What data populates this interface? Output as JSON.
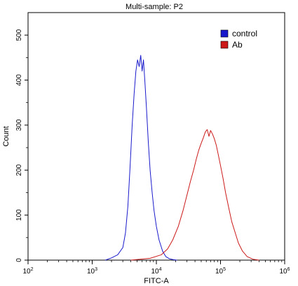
{
  "chart_data": {
    "type": "line",
    "title": "Multi-sample: P2",
    "xlabel": "FITC-A",
    "ylabel": "Count",
    "x_scale": "log",
    "xlim": [
      100,
      1000000
    ],
    "ylim": [
      0,
      550
    ],
    "grid": false,
    "legend_position": "top-right",
    "x_ticks": [
      {
        "value": 100,
        "base": "10",
        "exp": "2"
      },
      {
        "value": 1000,
        "base": "10",
        "exp": "3"
      },
      {
        "value": 10000,
        "base": "10",
        "exp": "4"
      },
      {
        "value": 100000,
        "base": "10",
        "exp": "5"
      },
      {
        "value": 1000000,
        "base": "10",
        "exp": "6"
      }
    ],
    "y_ticks": [
      0,
      100,
      200,
      300,
      400,
      500
    ],
    "series": [
      {
        "name": "control",
        "color": "#1a1acd",
        "x": [
          1600,
          2000,
          2500,
          3000,
          3300,
          3600,
          3900,
          4200,
          4500,
          4800,
          5100,
          5400,
          5700,
          6000,
          6300,
          6600,
          7000,
          7500,
          8000,
          8600,
          9200,
          10000,
          11000,
          12500,
          14000,
          16000,
          18500,
          21000
        ],
        "values": [
          0,
          5,
          12,
          28,
          60,
          120,
          210,
          300,
          370,
          420,
          445,
          430,
          455,
          420,
          445,
          400,
          340,
          260,
          200,
          150,
          110,
          75,
          45,
          20,
          8,
          3,
          1,
          0
        ]
      },
      {
        "name": "Ab",
        "color": "#cc1a1a",
        "x": [
          4000,
          8000,
          12000,
          15000,
          18000,
          22000,
          26000,
          30000,
          34000,
          38000,
          42000,
          46000,
          50000,
          54000,
          58000,
          62000,
          66000,
          70000,
          75000,
          80000,
          86000,
          92000,
          100000,
          110000,
          120000,
          135000,
          150000,
          170000,
          190000,
          220000,
          260000,
          320000,
          400000
        ],
        "values": [
          0,
          4,
          12,
          25,
          45,
          75,
          110,
          145,
          175,
          200,
          225,
          245,
          260,
          272,
          285,
          290,
          275,
          288,
          280,
          270,
          255,
          235,
          210,
          180,
          150,
          115,
          85,
          60,
          38,
          20,
          8,
          2,
          0
        ]
      }
    ]
  }
}
